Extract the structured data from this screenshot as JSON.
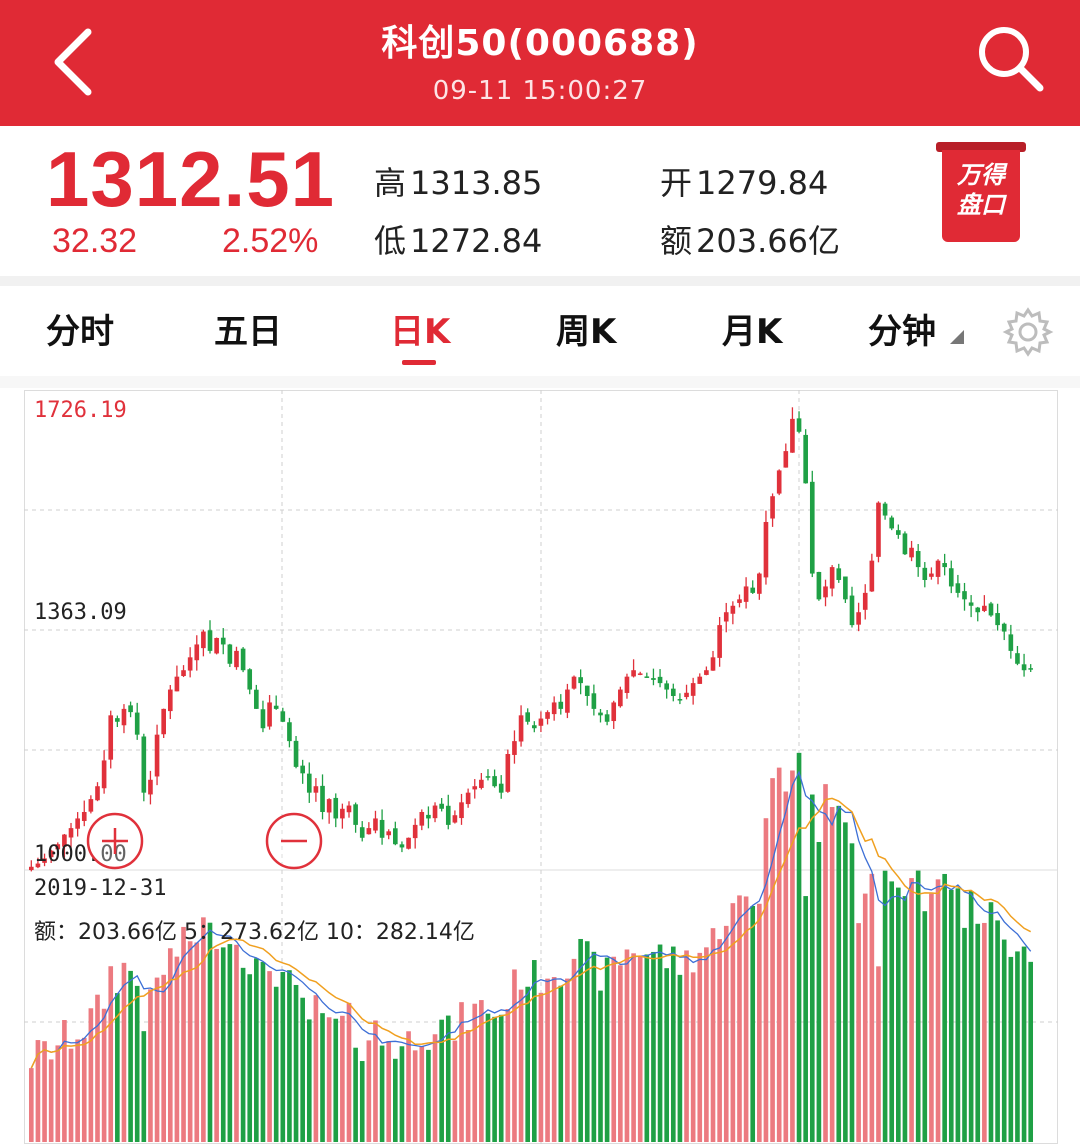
{
  "header": {
    "title": "科创50(000688)",
    "subtitle": "09-11 15:00:27"
  },
  "quote": {
    "price": "1312.51",
    "change": "32.32",
    "change_pct": "2.52%",
    "high_label": "高",
    "high": "1313.85",
    "low_label": "低",
    "low": "1272.84",
    "open_label": "开",
    "open": "1279.84",
    "amount_label": "额",
    "amount": "203.66亿",
    "wande_line1": "万得",
    "wande_line2": "盘口"
  },
  "tabs": [
    {
      "label": "分时"
    },
    {
      "label": "五日"
    },
    {
      "label": "日K"
    },
    {
      "label": "周K"
    },
    {
      "label": "月K"
    },
    {
      "label": "分钟"
    }
  ],
  "active_tab": "日K",
  "chart_info": {
    "y_top_label": "1726.19",
    "y_mid_label": "1363.09",
    "y_bottom_label": "1000.00",
    "start_date": "2019-12-31",
    "vol_text": "额：203.66亿 5：273.62亿 10：282.14亿"
  },
  "colors": {
    "brand_red": "#e02a35",
    "up": "#e0313b",
    "down": "#1fa045",
    "ma5": "#3d6fd6",
    "ma10": "#f0a020"
  },
  "chart_data": {
    "type": "candlestick",
    "ylim": [
      1000.0,
      1726.19
    ],
    "close": [
      1005,
      1010,
      1018,
      1030,
      1040,
      1055,
      1065,
      1080,
      1090,
      1110,
      1130,
      1170,
      1240,
      1230,
      1250,
      1245,
      1210,
      1120,
      1140,
      1210,
      1250,
      1280,
      1300,
      1310,
      1330,
      1350,
      1370,
      1340,
      1360,
      1350,
      1320,
      1340,
      1310,
      1280,
      1250,
      1220,
      1260,
      1250,
      1230,
      1200,
      1160,
      1150,
      1120,
      1130,
      1090,
      1110,
      1080,
      1095,
      1100,
      1070,
      1050,
      1065,
      1080,
      1050,
      1060,
      1040,
      1035,
      1050,
      1070,
      1090,
      1080,
      1100,
      1095,
      1070,
      1085,
      1105,
      1120,
      1130,
      1140,
      1145,
      1130,
      1120,
      1180,
      1200,
      1240,
      1230,
      1220,
      1235,
      1245,
      1260,
      1250,
      1280,
      1300,
      1290,
      1270,
      1250,
      1240,
      1230,
      1260,
      1280,
      1300,
      1310,
      1305,
      1300,
      1295,
      1290,
      1280,
      1270,
      1265,
      1275,
      1290,
      1300,
      1310,
      1330,
      1380,
      1400,
      1410,
      1420,
      1440,
      1430,
      1460,
      1540,
      1580,
      1620,
      1650,
      1700,
      1680,
      1600,
      1460,
      1420,
      1440,
      1470,
      1450,
      1420,
      1380,
      1400,
      1430,
      1480,
      1570,
      1550,
      1530,
      1520,
      1490,
      1500,
      1470,
      1450,
      1460,
      1480,
      1470,
      1440,
      1430,
      1420,
      1410,
      1400,
      1410,
      1395,
      1380,
      1370,
      1340,
      1320,
      1310,
      1312.51
    ],
    "volume_ma": {
      "ma5": "273.62亿",
      "ma10": "282.14亿"
    },
    "volume_last": "203.66亿"
  }
}
